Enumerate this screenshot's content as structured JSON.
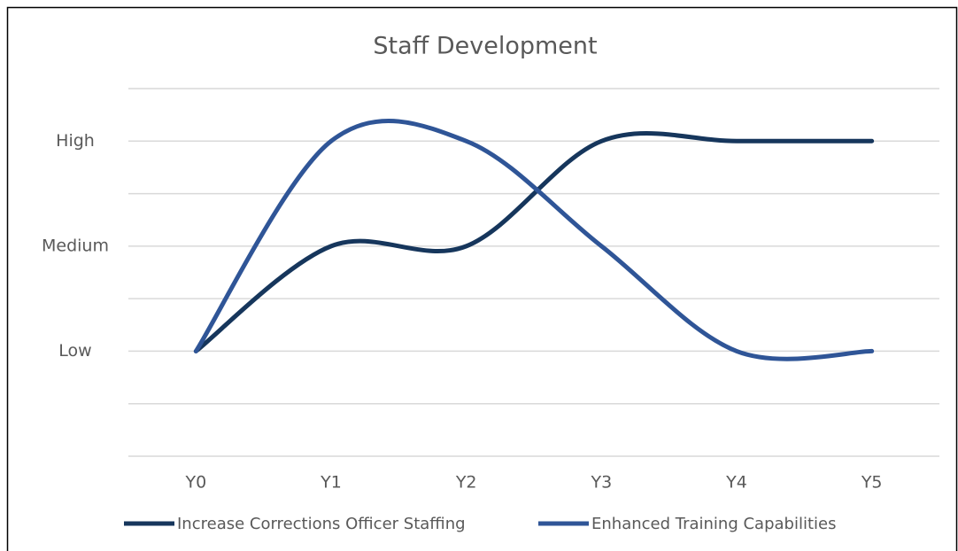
{
  "chart_data": {
    "type": "line",
    "title": "Staff Development",
    "categories": [
      "Y0",
      "Y1",
      "Y2",
      "Y3",
      "Y4",
      "Y5"
    ],
    "series": [
      {
        "name": "Increase Corrections Officer Staffing",
        "color": "#16365c",
        "values": [
          1,
          2,
          2,
          3,
          3,
          3
        ]
      },
      {
        "name": "Enhanced Training Capabilities",
        "color": "#2f5597",
        "values": [
          1,
          3,
          3,
          2,
          1,
          1
        ]
      }
    ],
    "ylim": [
      0,
      3.5
    ],
    "yticks": [
      {
        "value": 0,
        "label": null
      },
      {
        "value": 0.5,
        "label": null
      },
      {
        "value": 1,
        "label": "Low"
      },
      {
        "value": 1.5,
        "label": null
      },
      {
        "value": 2,
        "label": "Medium"
      },
      {
        "value": 2.5,
        "label": null
      },
      {
        "value": 3,
        "label": "High"
      },
      {
        "value": 3.5,
        "label": null
      }
    ],
    "grid": true,
    "smooth": true,
    "legend": "bottom"
  }
}
